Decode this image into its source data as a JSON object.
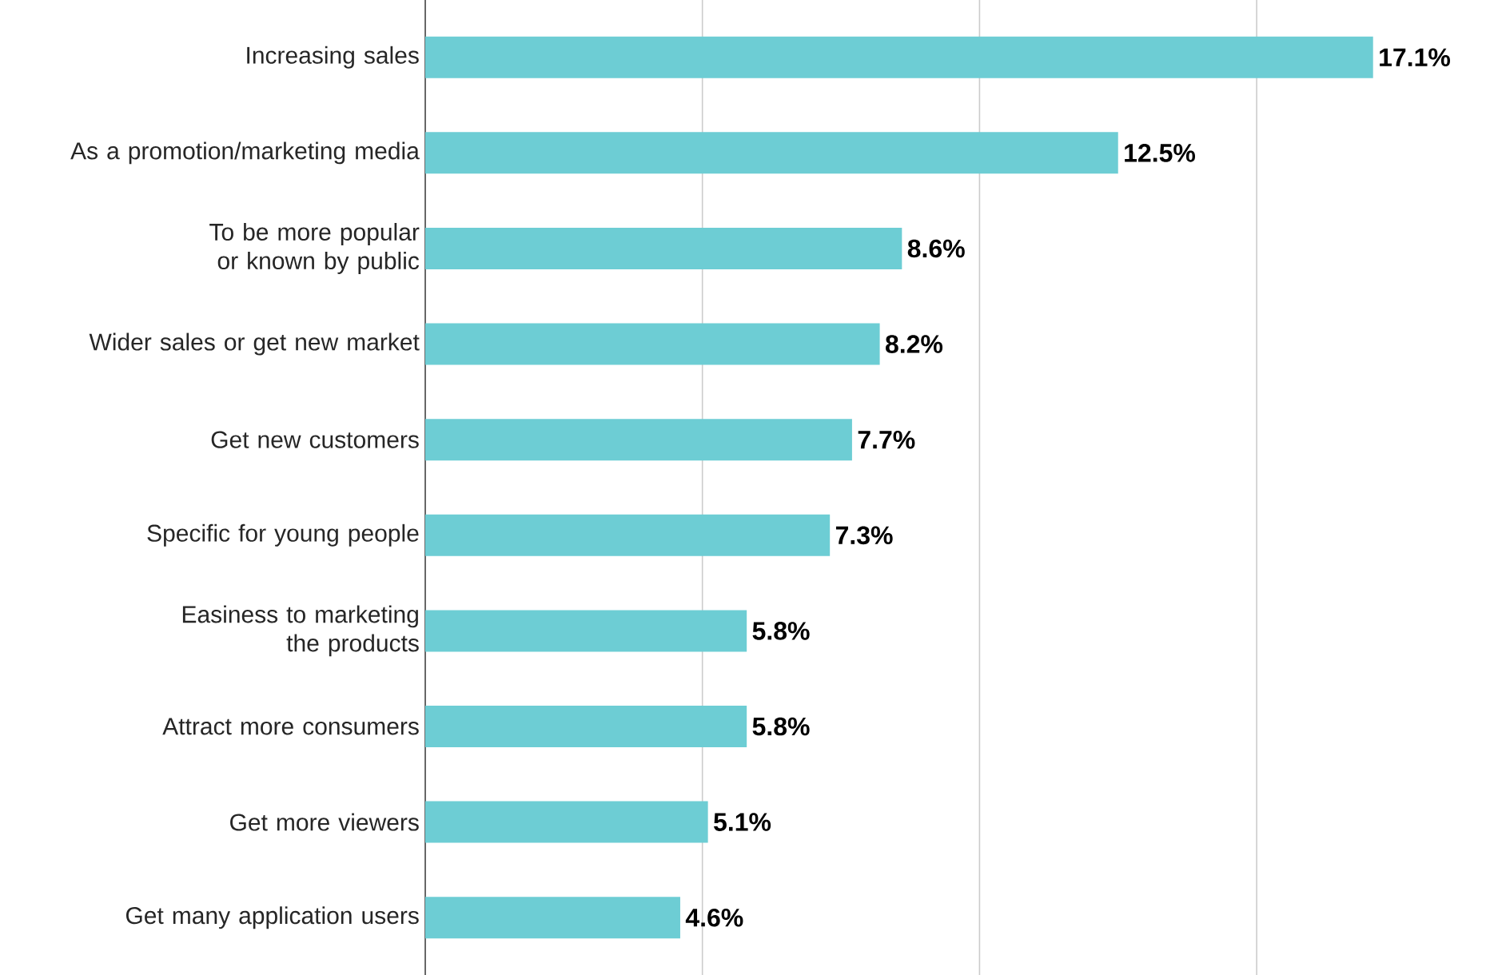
{
  "chart_data": {
    "type": "bar",
    "orientation": "horizontal",
    "categories": [
      "Increasing sales",
      "As a promotion/marketing media",
      "To be more popular or known by public",
      "Wider sales or get new market",
      "Get new customers",
      "Specific for young people",
      "Easiness to marketing the products",
      "Attract more consumers",
      "Get more viewers",
      "Get many application users"
    ],
    "values": [
      17.1,
      12.5,
      8.6,
      8.2,
      7.7,
      7.3,
      5.8,
      5.8,
      5.1,
      4.6
    ],
    "value_labels": [
      "17.1%",
      "12.5%",
      "8.6%",
      "8.2%",
      "7.7%",
      "7.3%",
      "5.8%",
      "5.8%",
      "5.1%",
      "4.6%"
    ],
    "color": "#6dcdd4",
    "xticks": [
      {
        "value": 0,
        "label": null
      },
      {
        "value": 5,
        "label": null
      },
      {
        "value": 10,
        "label": null
      },
      {
        "value": 15,
        "label": null
      }
    ],
    "grid": "x"
  }
}
